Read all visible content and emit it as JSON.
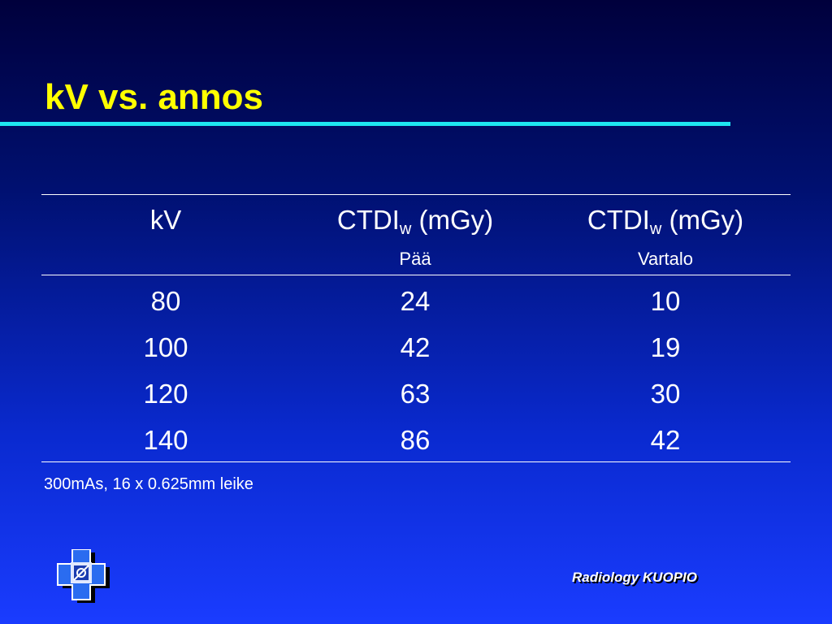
{
  "slide": {
    "title": "kV vs. annos",
    "footer": "Radiology KUOPIO",
    "note": "300mAs, 16 x 0.625mm leike",
    "colors": {
      "title": "#ffff00",
      "rule": "#1ee6f0",
      "text": "#ffffff",
      "background_top": "#00003c",
      "background_bottom": "#1a3cff"
    },
    "logo_icon": "cross-logo-icon"
  },
  "table": {
    "headers": [
      {
        "main": "kV",
        "sub": "",
        "subtitle": ""
      },
      {
        "main": "CTDI",
        "sub": "w",
        "unit": " (mGy)",
        "subtitle": "Pää"
      },
      {
        "main": "CTDI",
        "sub": "w",
        "unit": " (mGy)",
        "subtitle": "Vartalo"
      }
    ],
    "rows": [
      [
        "80",
        "24",
        "10"
      ],
      [
        "100",
        "42",
        "19"
      ],
      [
        "120",
        "63",
        "30"
      ],
      [
        "140",
        "86",
        "42"
      ]
    ]
  }
}
